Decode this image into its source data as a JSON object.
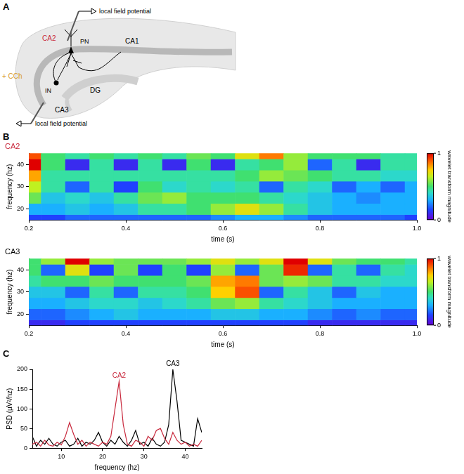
{
  "diagram": {
    "panel": "A",
    "treatment": "+ CCh",
    "regions": [
      "CA2",
      "CA1",
      "DG",
      "CA3"
    ],
    "cells": [
      "PN",
      "IN"
    ],
    "electrodes": [
      "local field potential",
      "local field potential"
    ]
  },
  "chart_data": [
    {
      "type": "heatmap",
      "panel": "B",
      "title": "CA2",
      "x_label": "time (s)",
      "y_label": "frequency (hz)",
      "x": [
        0.2,
        0.25,
        0.3,
        0.35,
        0.4,
        0.45,
        0.5,
        0.55,
        0.6,
        0.65,
        0.7,
        0.75,
        0.8,
        0.85,
        0.9,
        0.95,
        1.0
      ],
      "y": [
        15,
        20,
        25,
        30,
        35,
        40,
        45
      ],
      "z": [
        [
          0.15,
          0.15,
          0.2,
          0.2,
          0.2,
          0.2,
          0.2,
          0.2,
          0.25,
          0.3,
          0.3,
          0.25,
          0.2,
          0.2,
          0.2,
          0.2,
          0.15
        ],
        [
          0.3,
          0.3,
          0.35,
          0.3,
          0.35,
          0.45,
          0.45,
          0.5,
          0.6,
          0.7,
          0.6,
          0.45,
          0.35,
          0.3,
          0.3,
          0.3,
          0.3
        ],
        [
          0.55,
          0.35,
          0.4,
          0.35,
          0.45,
          0.55,
          0.6,
          0.5,
          0.5,
          0.5,
          0.45,
          0.4,
          0.35,
          0.3,
          0.25,
          0.3,
          0.3
        ],
        [
          0.65,
          0.45,
          0.2,
          0.45,
          0.15,
          0.5,
          0.4,
          0.45,
          0.4,
          0.45,
          0.2,
          0.45,
          0.4,
          0.2,
          0.3,
          0.2,
          0.3
        ],
        [
          0.8,
          0.45,
          0.45,
          0.45,
          0.45,
          0.45,
          0.45,
          0.45,
          0.45,
          0.5,
          0.6,
          0.55,
          0.5,
          0.45,
          0.45,
          0.4,
          0.4
        ],
        [
          1.0,
          0.5,
          0.1,
          0.45,
          0.1,
          0.45,
          0.1,
          0.5,
          0.1,
          0.45,
          0.5,
          0.6,
          0.2,
          0.45,
          0.1,
          0.45,
          0.45
        ],
        [
          0.9,
          0.5,
          0.45,
          0.5,
          0.45,
          0.5,
          0.45,
          0.55,
          0.5,
          0.7,
          0.85,
          0.6,
          0.5,
          0.5,
          0.5,
          0.45,
          0.45
        ]
      ],
      "xlim": [
        0.2,
        1.0
      ],
      "xticks": [
        0.2,
        0.4,
        0.6,
        0.8,
        {
          "value": 1,
          "label": "1.0"
        }
      ],
      "ylim": [
        15,
        45
      ],
      "yticks": [
        20,
        30,
        40
      ],
      "grid": false,
      "colorbar": {
        "label": "wavelet transform magnitude",
        "range": [
          0,
          1
        ],
        "ticks": [
          0,
          1
        ]
      }
    },
    {
      "type": "heatmap",
      "title": "CA3",
      "x_label": "time (s)",
      "y_label": "frequency (hz)",
      "x": [
        0.2,
        0.25,
        0.3,
        0.35,
        0.4,
        0.45,
        0.5,
        0.55,
        0.6,
        0.65,
        0.7,
        0.75,
        0.8,
        0.85,
        0.9,
        0.95,
        1.0
      ],
      "y": [
        15,
        20,
        25,
        30,
        35,
        40,
        45
      ],
      "z": [
        [
          0.1,
          0.1,
          0.15,
          0.15,
          0.15,
          0.15,
          0.15,
          0.15,
          0.15,
          0.15,
          0.15,
          0.15,
          0.1,
          0.1,
          0.1,
          0.1,
          0.1
        ],
        [
          0.2,
          0.2,
          0.25,
          0.3,
          0.35,
          0.3,
          0.3,
          0.3,
          0.35,
          0.35,
          0.3,
          0.3,
          0.25,
          0.2,
          0.25,
          0.2,
          0.2
        ],
        [
          0.3,
          0.3,
          0.35,
          0.4,
          0.4,
          0.35,
          0.4,
          0.45,
          0.55,
          0.6,
          0.45,
          0.4,
          0.35,
          0.3,
          0.3,
          0.3,
          0.3
        ],
        [
          0.35,
          0.35,
          0.2,
          0.45,
          0.2,
          0.45,
          0.45,
          0.5,
          0.75,
          0.9,
          0.2,
          0.45,
          0.35,
          0.2,
          0.35,
          0.3,
          0.3
        ],
        [
          0.45,
          0.5,
          0.5,
          0.55,
          0.5,
          0.5,
          0.5,
          0.55,
          0.8,
          0.85,
          0.55,
          0.6,
          0.55,
          0.45,
          0.45,
          0.4,
          0.4
        ],
        [
          0.5,
          0.2,
          0.7,
          0.15,
          0.55,
          0.15,
          0.5,
          0.15,
          0.6,
          0.2,
          0.55,
          0.95,
          0.2,
          0.45,
          0.2,
          0.45,
          0.4
        ],
        [
          0.5,
          0.6,
          1.0,
          0.6,
          0.55,
          0.55,
          0.55,
          0.6,
          0.7,
          0.6,
          0.7,
          1.0,
          0.7,
          0.55,
          0.5,
          0.5,
          0.45
        ]
      ],
      "xlim": [
        0.2,
        1.0
      ],
      "xticks": [
        0.2,
        0.4,
        0.6,
        0.8,
        {
          "value": 1,
          "label": "1.0"
        }
      ],
      "ylim": [
        15,
        45
      ],
      "yticks": [
        20,
        30,
        40
      ],
      "grid": false,
      "colorbar": {
        "label": "wavelet transform magnitude",
        "range": [
          0,
          1
        ],
        "ticks": [
          0,
          1
        ]
      }
    },
    {
      "type": "line",
      "panel": "C",
      "x_label": "frequency (hz)",
      "y_label": "PSD (µV²/hz)",
      "x": [
        3,
        4,
        5,
        6,
        7,
        8,
        9,
        10,
        11,
        12,
        13,
        14,
        15,
        16,
        17,
        18,
        19,
        20,
        21,
        22,
        23,
        24,
        25,
        26,
        27,
        28,
        29,
        30,
        31,
        32,
        33,
        34,
        35,
        36,
        37,
        38,
        39,
        40,
        41,
        42,
        43,
        44
      ],
      "series": [
        {
          "name": "CA2",
          "color": "#c8283c",
          "values": [
            10,
            15,
            5,
            20,
            8,
            5,
            15,
            8,
            30,
            65,
            35,
            10,
            20,
            5,
            15,
            10,
            5,
            15,
            10,
            30,
            100,
            170,
            60,
            10,
            5,
            20,
            15,
            5,
            30,
            20,
            45,
            50,
            25,
            10,
            40,
            20,
            10,
            15,
            5,
            10,
            5,
            20
          ]
        },
        {
          "name": "CA3",
          "color": "#000000",
          "values": [
            30,
            5,
            20,
            10,
            25,
            10,
            5,
            15,
            20,
            5,
            10,
            25,
            5,
            15,
            10,
            20,
            40,
            15,
            5,
            20,
            10,
            30,
            15,
            5,
            20,
            45,
            10,
            15,
            5,
            25,
            10,
            5,
            15,
            60,
            200,
            120,
            20,
            15,
            10,
            5,
            75,
            40
          ]
        }
      ],
      "xlim": [
        3,
        44
      ],
      "xticks": [
        10,
        20,
        30,
        40
      ],
      "ylim": [
        0,
        200
      ],
      "yticks": [
        0,
        50,
        100,
        150,
        200
      ],
      "grid": false
    }
  ]
}
